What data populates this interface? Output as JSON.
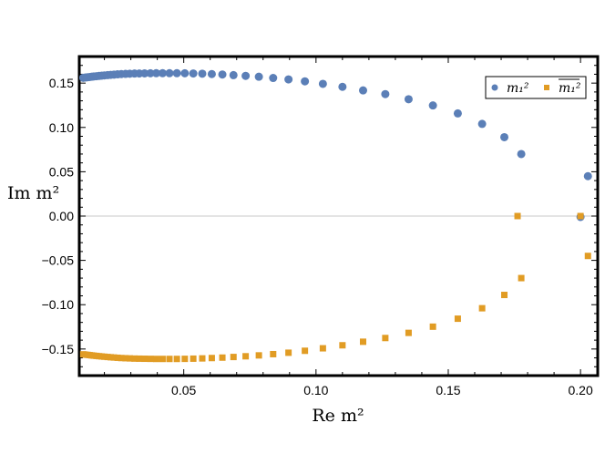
{
  "chart_data": {
    "type": "scatter",
    "title": "",
    "xlabel": "Re m²",
    "ylabel": "Im m²",
    "xlim": [
      0.0105,
      0.2065
    ],
    "ylim": [
      -0.18,
      0.18
    ],
    "grid": false,
    "legend_position": "top-right",
    "x_ticks": [
      0.05,
      0.1,
      0.15,
      0.2
    ],
    "x_tick_labels": [
      "0.05",
      "0.10",
      "0.15",
      "0.20"
    ],
    "y_ticks": [
      0.15,
      0.1,
      0.05,
      0.0,
      -0.05,
      -0.1,
      -0.15
    ],
    "y_tick_labels": [
      "0.15",
      "0.10",
      "0.05",
      "0.00",
      "−0.05",
      "−0.10",
      "−0.15"
    ],
    "series": [
      {
        "name": "m₁²",
        "marker": "circle",
        "color": "#5b7fb7",
        "x": [
          0.012,
          0.0128,
          0.0136,
          0.0144,
          0.0152,
          0.016,
          0.017,
          0.018,
          0.019,
          0.02,
          0.0212,
          0.0224,
          0.0236,
          0.025,
          0.0264,
          0.028,
          0.0296,
          0.0314,
          0.0332,
          0.0352,
          0.0374,
          0.0396,
          0.042,
          0.0446,
          0.0474,
          0.0504,
          0.0536,
          0.057,
          0.0606,
          0.0646,
          0.0688,
          0.0734,
          0.0784,
          0.0838,
          0.0896,
          0.0958,
          0.1026,
          0.11,
          0.1178,
          0.1262,
          0.135,
          0.1442,
          0.1536,
          0.1628,
          0.1712,
          0.1776,
          0.2,
          0.2028
        ],
        "y": [
          0.156,
          0.1563,
          0.1566,
          0.1569,
          0.1572,
          0.1575,
          0.1578,
          0.1581,
          0.1584,
          0.1587,
          0.159,
          0.1593,
          0.1596,
          0.1599,
          0.1602,
          0.1604,
          0.1606,
          0.1608,
          0.1609,
          0.161,
          0.1611,
          0.1612,
          0.1612,
          0.1612,
          0.1612,
          0.1611,
          0.1609,
          0.1606,
          0.1602,
          0.1597,
          0.159,
          0.1582,
          0.1572,
          0.1558,
          0.1542,
          0.152,
          0.1492,
          0.1458,
          0.1418,
          0.1376,
          0.1318,
          0.1248,
          0.1158,
          0.104,
          0.089,
          0.07,
          -0.001,
          0.045
        ]
      },
      {
        "name": "m₁² (conjugate)",
        "marker": "square",
        "color": "#e19c24",
        "x": [
          0.012,
          0.0128,
          0.0136,
          0.0144,
          0.0152,
          0.016,
          0.017,
          0.018,
          0.019,
          0.02,
          0.0212,
          0.0224,
          0.0236,
          0.025,
          0.0264,
          0.028,
          0.0296,
          0.0314,
          0.0332,
          0.0352,
          0.0374,
          0.0396,
          0.042,
          0.0446,
          0.0474,
          0.0504,
          0.0536,
          0.057,
          0.0606,
          0.0646,
          0.0688,
          0.0734,
          0.0784,
          0.0838,
          0.0896,
          0.0958,
          0.1026,
          0.11,
          0.1178,
          0.1262,
          0.135,
          0.1442,
          0.1536,
          0.1628,
          0.1712,
          0.1776,
          0.1762,
          0.2,
          0.2028
        ],
        "y": [
          -0.156,
          -0.1563,
          -0.1566,
          -0.1569,
          -0.1572,
          -0.1575,
          -0.1578,
          -0.1581,
          -0.1584,
          -0.1587,
          -0.159,
          -0.1593,
          -0.1596,
          -0.1599,
          -0.1602,
          -0.1604,
          -0.1606,
          -0.1608,
          -0.1609,
          -0.161,
          -0.1611,
          -0.1612,
          -0.1612,
          -0.1612,
          -0.1612,
          -0.1611,
          -0.1609,
          -0.1606,
          -0.1602,
          -0.1597,
          -0.159,
          -0.1582,
          -0.1572,
          -0.1558,
          -0.1542,
          -0.152,
          -0.1492,
          -0.1458,
          -0.1418,
          -0.1376,
          -0.1318,
          -0.1248,
          -0.1158,
          -0.104,
          -0.089,
          -0.07,
          0.0,
          0.0,
          -0.045
        ]
      }
    ]
  }
}
